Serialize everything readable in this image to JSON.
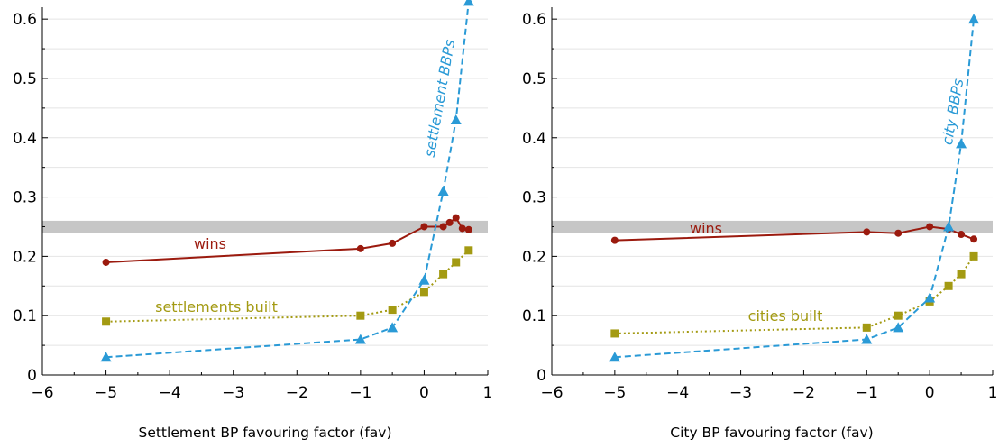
{
  "colors": {
    "wins": "#9b1a0e",
    "built": "#a39a12",
    "bbps": "#2a9ad6",
    "band": "#c6c6c6",
    "grid": "#e4e4e4",
    "axis": "#000000"
  },
  "chart_data": [
    {
      "type": "line",
      "xlabel": "Settlement BP favouring factor (fav)",
      "ylabel": "",
      "xlim": [
        -6,
        1
      ],
      "ylim": [
        0,
        0.62
      ],
      "xticks": [
        -6,
        -5,
        -4,
        -3,
        -2,
        -1,
        0,
        1
      ],
      "xtick_labels": [
        "−6",
        "−5",
        "−4",
        "−3",
        "−2",
        "−1",
        "0",
        "1"
      ],
      "yticks": [
        0,
        0.1,
        0.2,
        0.3,
        0.4,
        0.5,
        0.6
      ],
      "ytick_labels": [
        "0",
        "0.1",
        "0.2",
        "0.3",
        "0.4",
        "0.5",
        "0.6"
      ],
      "grid": true,
      "reference_band": [
        0.24,
        0.26
      ],
      "series": [
        {
          "name": "wins",
          "marker": "circle",
          "style": "solid",
          "x": [
            -5,
            -1,
            -0.5,
            0,
            0.3,
            0.4,
            0.5,
            0.6,
            0.7
          ],
          "y": [
            0.19,
            0.213,
            0.222,
            0.25,
            0.25,
            0.257,
            0.265,
            0.247,
            0.245
          ]
        },
        {
          "name": "settlements built",
          "marker": "square",
          "style": "dotted",
          "x": [
            -5,
            -1,
            -0.5,
            0,
            0.3,
            0.5,
            0.7
          ],
          "y": [
            0.09,
            0.1,
            0.11,
            0.14,
            0.17,
            0.19,
            0.21
          ]
        },
        {
          "name": "settlement BBPs",
          "marker": "triangle",
          "style": "dashed",
          "x": [
            -5,
            -1,
            -0.5,
            0,
            0.3,
            0.5,
            0.7
          ],
          "y": [
            0.03,
            0.06,
            0.08,
            0.16,
            0.31,
            0.43,
            0.63
          ]
        }
      ]
    },
    {
      "type": "line",
      "xlabel": "City BP favouring factor (fav)",
      "ylabel": "",
      "xlim": [
        -6,
        1
      ],
      "ylim": [
        0,
        0.62
      ],
      "xticks": [
        -6,
        -5,
        -4,
        -3,
        -2,
        -1,
        0,
        1
      ],
      "xtick_labels": [
        "−6",
        "−5",
        "−4",
        "−3",
        "−2",
        "−1",
        "0",
        "1"
      ],
      "yticks": [
        0,
        0.1,
        0.2,
        0.3,
        0.4,
        0.5,
        0.6
      ],
      "ytick_labels": [
        "0",
        "0.1",
        "0.2",
        "0.3",
        "0.4",
        "0.5",
        "0.6"
      ],
      "grid": true,
      "reference_band": [
        0.24,
        0.26
      ],
      "series": [
        {
          "name": "wins",
          "marker": "circle",
          "style": "solid",
          "x": [
            -5,
            -1,
            -0.5,
            0,
            0.3,
            0.5,
            0.7
          ],
          "y": [
            0.227,
            0.241,
            0.239,
            0.25,
            0.246,
            0.237,
            0.229
          ]
        },
        {
          "name": "cities built",
          "marker": "square",
          "style": "dotted",
          "x": [
            -5,
            -1,
            -0.5,
            0,
            0.3,
            0.5,
            0.7
          ],
          "y": [
            0.07,
            0.08,
            0.1,
            0.124,
            0.15,
            0.17,
            0.2
          ]
        },
        {
          "name": "city BBPs",
          "marker": "triangle",
          "style": "dashed",
          "x": [
            -5,
            -1,
            -0.5,
            0,
            0.3,
            0.5,
            0.7
          ],
          "y": [
            0.03,
            0.06,
            0.08,
            0.13,
            0.25,
            0.39,
            0.6
          ]
        }
      ]
    }
  ]
}
